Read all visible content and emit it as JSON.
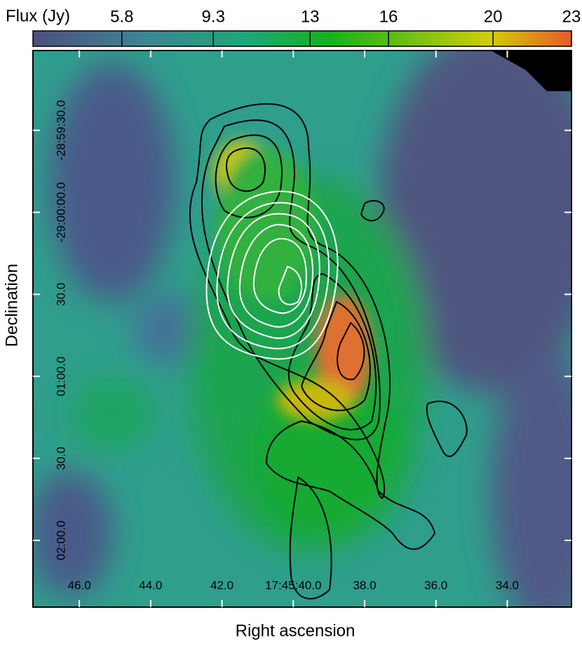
{
  "chart_data": {
    "type": "image",
    "colorbar": {
      "label": "Flux (Jy)",
      "lim": [
        2.4,
        23
      ],
      "ticks": [
        5.8,
        9.3,
        13,
        16,
        20,
        23
      ]
    },
    "xlabel": "Right ascension",
    "ylabel": "Declination",
    "xlim": [
      47.3,
      32.2
    ],
    "xticks": [
      {
        "value": 46,
        "label": "46.0"
      },
      {
        "value": 44,
        "label": "44.0"
      },
      {
        "value": 42,
        "label": "42.0"
      },
      {
        "value": 40,
        "label": "17:45:40.0"
      },
      {
        "value": 38,
        "label": "38.0"
      },
      {
        "value": 36,
        "label": "36.0"
      },
      {
        "value": 34,
        "label": "34.0"
      }
    ],
    "ylim": [
      -29.04011,
      -28.98356
    ],
    "yticks": [
      {
        "value": -28.991667,
        "label": "-28:59:30.0"
      },
      {
        "value": -29.0,
        "label": "-29:00:00.0"
      },
      {
        "value": -29.008333,
        "label": "30.0"
      },
      {
        "value": -29.016667,
        "label": "01:00.0"
      },
      {
        "value": -29.025,
        "label": "30.0"
      },
      {
        "value": -29.033333,
        "label": "02:00.0"
      }
    ]
  }
}
